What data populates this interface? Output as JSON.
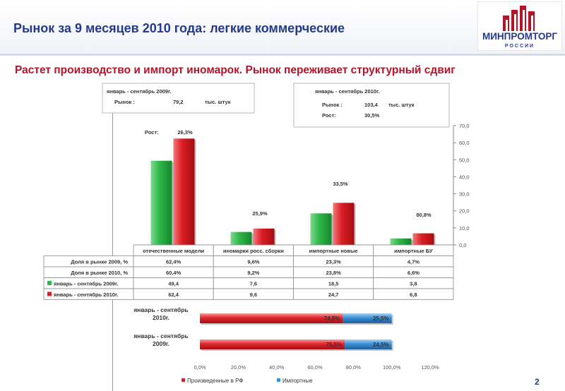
{
  "title": "Рынок за 9 месяцев 2010 года: легкие коммерческие",
  "subtitle": "Растет производство и импорт иномарок. Рынок переживает структурный сдвиг",
  "logo_text": "МИНПРОМТОРГ",
  "logo_subtext": "РОССИИ",
  "page_number": "2",
  "colors": {
    "title_blue": "#233a8b",
    "subtitle_red": "#b3142a",
    "series_green": "#2fb84c",
    "series_red": "#dd1f26",
    "series_blue": "#3a8fd6"
  },
  "info_2009": {
    "title": "январь - сентябрь 2009г.",
    "market_label": "Рынок :",
    "market_value": "79,2",
    "unit": "тыс. штук"
  },
  "info_2010": {
    "title": "январь - сентябрь 2010г.",
    "market_label": "Рынок :",
    "market_value": "103,4",
    "unit": "тыс. штук",
    "growth_label": "Рост:",
    "growth_value": "30,5%"
  },
  "growth_label": "Рост:",
  "chart_data": [
    {
      "type": "bar",
      "categories": [
        "отечественные модели",
        "иномарки росс. сборки",
        "импортные новые",
        "импортные БУ"
      ],
      "series": [
        {
          "name": "январь - сентябрь 2009г.",
          "values": [
            49.4,
            7.6,
            18.5,
            3.8
          ],
          "labels": [
            "49,4",
            "7,6",
            "18,5",
            "3,8"
          ],
          "color": "#2fb84c"
        },
        {
          "name": "январь - сентябрь 2010г.",
          "values": [
            62.4,
            9.6,
            24.7,
            6.8
          ],
          "labels": [
            "62,4",
            "9,6",
            "24,7",
            "6,8"
          ],
          "color": "#dd1f26"
        }
      ],
      "growth_labels": [
        "26,3%",
        "25,9%",
        "33,5%",
        "80,8%"
      ],
      "ylim": [
        0,
        70
      ],
      "yticks": [
        "0,0",
        "10,0",
        "20,0",
        "30,0",
        "40,0",
        "50,0",
        "60,0",
        "70,0"
      ],
      "table_rows": [
        {
          "label": "Доля в рынке 2009, %",
          "values": [
            "62,4%",
            "9,6%",
            "23,3%",
            "4,7%"
          ]
        },
        {
          "label": "Доля в рынке 2010, %",
          "values": [
            "60,4%",
            "9,2%",
            "23,8%",
            "6,6%"
          ]
        }
      ]
    },
    {
      "type": "bar",
      "orientation": "horizontal",
      "stacked": true,
      "categories": [
        "январь - сентябрь 2010г.",
        "январь - сентябрь 2009г."
      ],
      "series": [
        {
          "name": "Произведенные в РФ",
          "values": [
            74.5,
            75.5
          ],
          "labels": [
            "74,5%",
            "75,5%"
          ],
          "color": "#dd1f26"
        },
        {
          "name": "Импортные",
          "values": [
            25.5,
            24.5
          ],
          "labels": [
            "25,5%",
            "24,5%"
          ],
          "color": "#3a8fd6"
        }
      ],
      "xlim": [
        0,
        120
      ],
      "xticks": [
        "0,0%",
        "20,0%",
        "40,0%",
        "60,0%",
        "80,0%",
        "100,0%",
        "120,0%"
      ],
      "legend": "bottom"
    }
  ]
}
